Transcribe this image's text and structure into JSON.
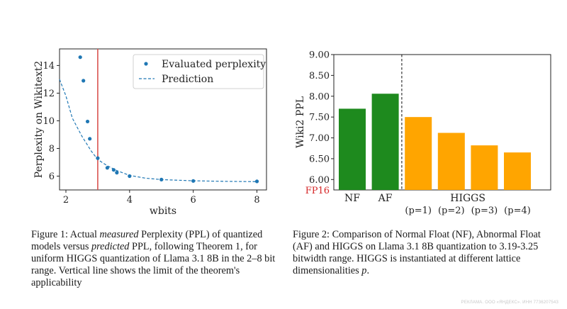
{
  "figure1": {
    "caption_parts": [
      {
        "t": "Figure 1: Actual ",
        "i": false
      },
      {
        "t": "measured",
        "i": true
      },
      {
        "t": " Perplexity (PPL) of quantized models versus ",
        "i": false
      },
      {
        "t": "predicted",
        "i": true
      },
      {
        "t": " PPL, following Theorem ",
        "i": false
      },
      {
        "t": "1",
        "i": false,
        "link": true
      },
      {
        "t": ", for uniform HIGGS quantization of Llama 3.1 8B in the 2–8 bit range. Vertical line shows the limit of the theorem's applicability",
        "i": false
      }
    ],
    "chart_data": {
      "type": "scatter",
      "xlabel": "wbits",
      "ylabel": "Perplexity on Wikitext2",
      "xlim": [
        1.8,
        8.3
      ],
      "ylim": [
        5.0,
        15.2
      ],
      "xticks": [
        2,
        4,
        6,
        8
      ],
      "yticks": [
        6,
        8,
        10,
        12,
        14
      ],
      "vline_x": 3.0,
      "vline_color": "#d9534f",
      "series": [
        {
          "name": "Evaluated perplexity",
          "style": "points",
          "color": "#1f77b4",
          "points": [
            [
              2.45,
              14.6
            ],
            [
              2.55,
              12.9
            ],
            [
              2.68,
              9.95
            ],
            [
              2.75,
              8.7
            ],
            [
              3.0,
              7.3
            ],
            [
              3.3,
              6.6
            ],
            [
              3.5,
              6.45
            ],
            [
              3.6,
              6.25
            ],
            [
              4.0,
              6.0
            ],
            [
              5.0,
              5.75
            ],
            [
              6.0,
              5.65
            ],
            [
              8.0,
              5.62
            ]
          ]
        },
        {
          "name": "Prediction",
          "style": "dashed-line",
          "color": "#1f77b4",
          "points": [
            [
              1.8,
              13.0
            ],
            [
              2.0,
              11.8
            ],
            [
              2.2,
              10.2
            ],
            [
              2.5,
              8.9
            ],
            [
              2.8,
              7.8
            ],
            [
              3.0,
              7.2
            ],
            [
              3.3,
              6.75
            ],
            [
              3.6,
              6.4
            ],
            [
              4.0,
              6.05
            ],
            [
              4.5,
              5.85
            ],
            [
              5.0,
              5.75
            ],
            [
              6.0,
              5.66
            ],
            [
              7.0,
              5.62
            ],
            [
              8.0,
              5.6
            ]
          ]
        }
      ],
      "legend_position": "top-right"
    }
  },
  "figure2": {
    "caption_parts": [
      {
        "t": "Figure 2: Comparison of Normal Float (NF), Abnormal Float (AF) and HIGGS on Llama 3.1 8B quantization to 3.19-3.25 bitwidth range. HIGGS is instantiated at different lattice dimensionalities ",
        "i": false
      },
      {
        "t": "p",
        "i": true
      },
      {
        "t": ".",
        "i": false
      }
    ],
    "chart_data": {
      "type": "bar",
      "ylabel": "Wiki2 PPL",
      "ylim": [
        5.75,
        9.0
      ],
      "yticks": [
        6.0,
        6.5,
        7.0,
        7.5,
        8.0,
        8.5,
        9.0
      ],
      "ytick_labels": [
        "6.00",
        "6.50",
        "7.00",
        "7.50",
        "8.00",
        "8.50",
        "9.00"
      ],
      "baseline_label": "FP16",
      "baseline_label_color": "#d62728",
      "bars": [
        {
          "label": "NF",
          "value": 7.7,
          "color": "#1e8a1e"
        },
        {
          "label": "AF",
          "value": 8.06,
          "color": "#1e8a1e"
        },
        {
          "label": "(p=1)",
          "value": 7.5,
          "color": "#ffa500"
        },
        {
          "label": "(p=2)",
          "value": 7.12,
          "color": "#ffa500"
        },
        {
          "label": "(p=3)",
          "value": 6.82,
          "color": "#ffa500"
        },
        {
          "label": "(p=4)",
          "value": 6.65,
          "color": "#ffa500"
        }
      ],
      "group_label": "HIGGS",
      "separator_after_bar": 2
    }
  },
  "footer": {
    "ad_text": "РЕКЛАМА. ООО «ЯНДЕКС». ИНН 7736207543"
  }
}
